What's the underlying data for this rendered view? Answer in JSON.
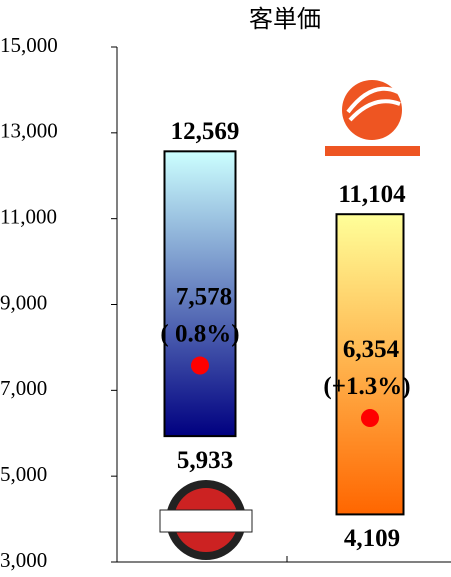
{
  "chart_data": {
    "type": "range-bar",
    "title": "客単価",
    "categories": [
      null,
      null
    ],
    "series": [
      {
        "name": null,
        "color_top": "#ccffff",
        "color_bottom": "#000080",
        "high": 12569,
        "high_label": "12,569",
        "low": 5933,
        "low_label": "5,933",
        "average": 7578,
        "average_label": "7,578",
        "change": 0.8,
        "change_label": "( 0.8%)"
      },
      {
        "name": null,
        "color_top": "#ffff99",
        "color_bottom": "#ff6600",
        "high": 11104,
        "high_label": "11,104",
        "low": 4109,
        "low_label": "4,109",
        "average": 6354,
        "average_label": "6,354",
        "change": 1.3,
        "change_label": "(+1.3%)"
      }
    ],
    "marker_color": "#ff0000",
    "ylim": [
      3000,
      15000
    ],
    "yticks": [
      {
        "value": 3000,
        "label": "3,000"
      },
      {
        "value": 5000,
        "label": "5,000"
      },
      {
        "value": 7000,
        "label": "7,000"
      },
      {
        "value": 9000,
        "label": "9,000"
      },
      {
        "value": 11000,
        "label": "11,000"
      },
      {
        "value": 13000,
        "label": "13,000"
      },
      {
        "value": 15000,
        "label": "15,000"
      }
    ]
  }
}
